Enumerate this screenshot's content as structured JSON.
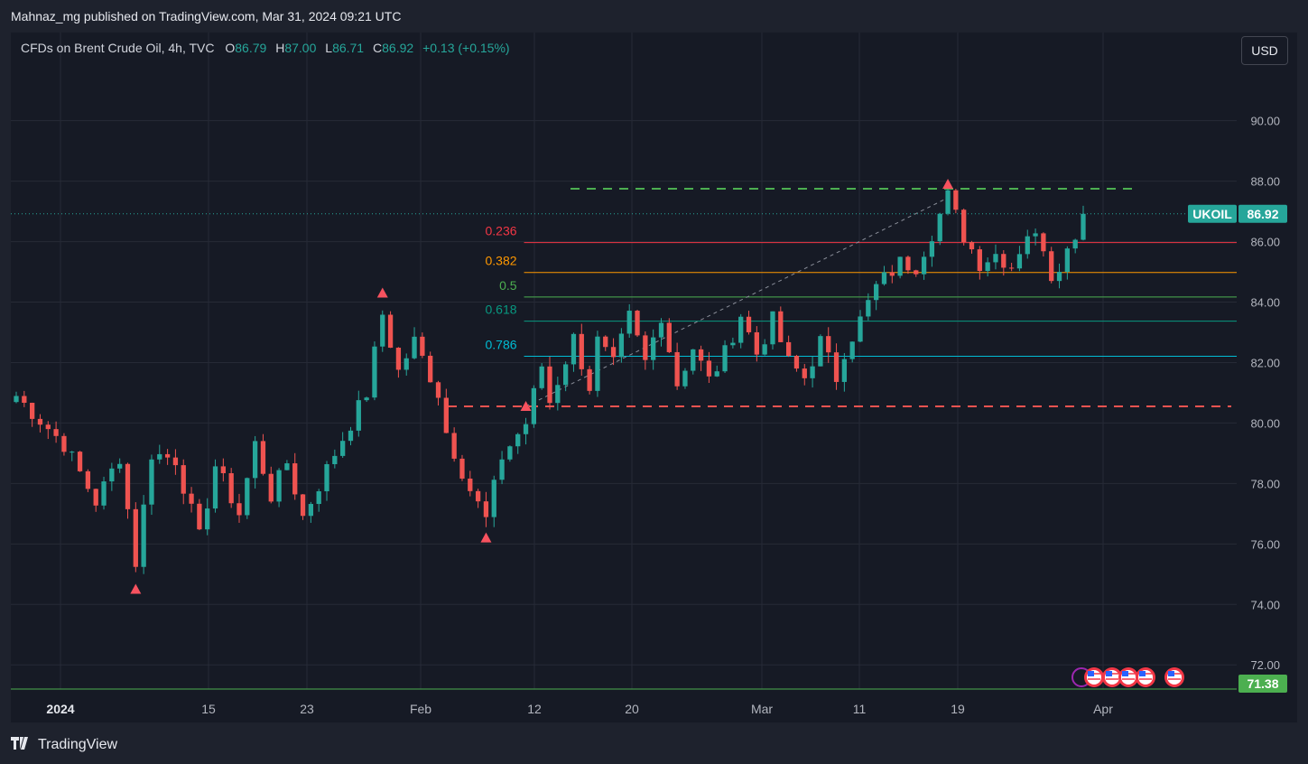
{
  "header": {
    "publish_line": "Mahnaz_mg published on TradingView.com, Mar 31, 2024 09:21 UTC"
  },
  "legend": {
    "symbol": "CFDs on Brent Crude Oil, 4h, TVC",
    "o_label": "O",
    "o_value": "86.79",
    "h_label": "H",
    "h_value": "87.00",
    "l_label": "L",
    "l_value": "86.71",
    "c_label": "C",
    "c_value": "86.92",
    "change": "+0.13 (+0.15%)"
  },
  "currency_button": "USD",
  "footer": {
    "brand": "TradingView"
  },
  "colors": {
    "up": "#26a69a",
    "down": "#ef5350",
    "grid": "#262a36",
    "axis_text": "#b2b5be",
    "background": "#161a25"
  },
  "chart_data": {
    "type": "candlestick",
    "title": "",
    "ylim": [
      71.2,
      92.5
    ],
    "y_ticks": [
      "90.00",
      "88.00",
      "86.00",
      "84.00",
      "82.00",
      "80.00",
      "78.00",
      "76.00",
      "74.00",
      "72.00"
    ],
    "x_ticks": [
      "2024",
      "15",
      "23",
      "Feb",
      "12",
      "20",
      "Mar",
      "11",
      "19",
      "Apr"
    ],
    "last_price": {
      "label": "UKOIL",
      "value": 86.92,
      "text": "86.92"
    },
    "other_price": {
      "value": 71.38,
      "text": "71.38"
    },
    "price_path": [
      [
        0,
        80.9
      ],
      [
        6,
        79.3
      ],
      [
        10,
        77.4
      ],
      [
        13,
        78.9
      ],
      [
        15,
        75.4
      ],
      [
        17,
        79.0
      ],
      [
        20,
        78.8
      ],
      [
        23,
        76.2
      ],
      [
        25,
        78.6
      ],
      [
        28,
        77.0
      ],
      [
        30,
        79.3
      ],
      [
        32,
        77.6
      ],
      [
        34,
        78.7
      ],
      [
        36,
        76.9
      ],
      [
        40,
        79.0
      ],
      [
        44,
        81.0
      ],
      [
        46,
        83.6
      ],
      [
        48,
        81.7
      ],
      [
        50,
        82.7
      ],
      [
        53,
        81.0
      ],
      [
        54,
        79.7
      ],
      [
        57,
        77.8
      ],
      [
        59,
        76.8
      ],
      [
        61,
        78.9
      ],
      [
        64,
        80.0
      ],
      [
        66,
        81.9
      ],
      [
        67,
        80.7
      ],
      [
        70,
        82.8
      ],
      [
        72,
        81.2
      ],
      [
        73,
        82.7
      ],
      [
        75,
        81.9
      ],
      [
        77,
        83.5
      ],
      [
        79,
        82.0
      ],
      [
        81,
        83.6
      ],
      [
        83,
        81.3
      ],
      [
        85,
        82.5
      ],
      [
        87,
        81.4
      ],
      [
        89,
        82.3
      ],
      [
        91,
        83.6
      ],
      [
        93,
        82.3
      ],
      [
        95,
        83.4
      ],
      [
        97,
        82.0
      ],
      [
        99,
        81.5
      ],
      [
        101,
        82.7
      ],
      [
        103,
        81.5
      ],
      [
        104,
        82.4
      ],
      [
        106,
        83.4
      ],
      [
        108,
        84.5
      ],
      [
        111,
        85.3
      ],
      [
        113,
        85.2
      ],
      [
        115,
        86.3
      ],
      [
        117,
        87.5
      ],
      [
        119,
        86.2
      ],
      [
        121,
        85.3
      ],
      [
        123,
        85.6
      ],
      [
        125,
        85.2
      ],
      [
        127,
        86.3
      ],
      [
        129,
        85.9
      ],
      [
        130,
        84.9
      ],
      [
        132,
        85.7
      ],
      [
        134,
        86.92
      ]
    ],
    "n_candles": 135,
    "fibonacci": {
      "high": 87.45,
      "low": 80.55,
      "levels": [
        {
          "label": "0.236",
          "value": 85.97,
          "color": "#f23645"
        },
        {
          "label": "0.382",
          "value": 84.98,
          "color": "#ff9800"
        },
        {
          "label": "0.5",
          "value": 84.17,
          "color": "#4caf50"
        },
        {
          "label": "0.618",
          "value": 83.37,
          "color": "#089981"
        },
        {
          "label": "0.786",
          "value": 82.21,
          "color": "#00bcd4"
        }
      ]
    },
    "resistance": {
      "value": 87.75,
      "color": "#4caf50"
    },
    "support": {
      "value": 80.55,
      "color": "#ef5350"
    },
    "pivots": [
      {
        "x": 15,
        "value": 74.5
      },
      {
        "x": 46,
        "value": 84.3
      },
      {
        "x": 59,
        "value": 76.2
      },
      {
        "x": 64,
        "value": 80.55
      },
      {
        "x": 117,
        "value": 87.9
      }
    ],
    "events": [
      "flag-icon",
      "flag-icon",
      "flag-icon",
      "flag-icon",
      "flag-icon"
    ]
  }
}
